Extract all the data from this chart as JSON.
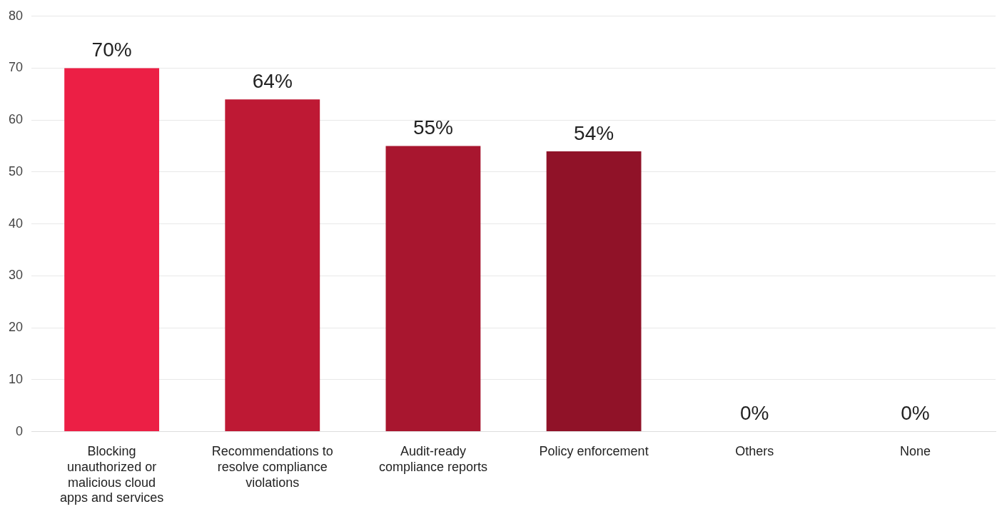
{
  "chart_data": {
    "type": "bar",
    "categories": [
      "Blocking unauthorized or malicious cloud apps and services",
      "Recommendations to resolve compliance violations",
      "Audit-ready compliance reports",
      "Policy enforcement",
      "Others",
      "None"
    ],
    "values": [
      70,
      64,
      55,
      54,
      0,
      0
    ],
    "colors": [
      "#ec1f45",
      "#be1934",
      "#a8162f",
      "#901228",
      "#901228",
      "#901228"
    ],
    "value_labels": [
      "70%",
      "64%",
      "55%",
      "54%",
      "0%",
      "0%"
    ],
    "ylim": [
      0,
      80
    ],
    "yticks": [
      0,
      10,
      20,
      30,
      40,
      50,
      60,
      70,
      80
    ],
    "grid": "y",
    "legend": false
  }
}
